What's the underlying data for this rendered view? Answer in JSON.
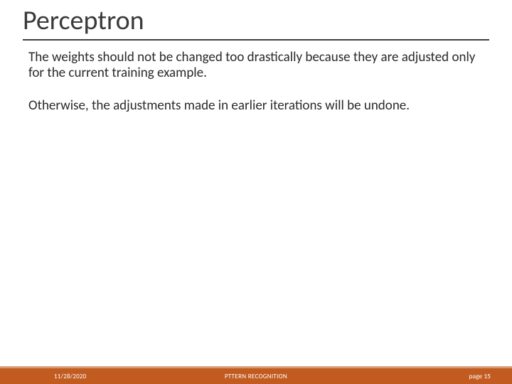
{
  "slide": {
    "title": "Perceptron",
    "title_color": "#3a3a3a",
    "title_fontsize": 38,
    "underline_color": "#404040",
    "paragraphs": [
      "The weights should not be changed too drastically because they are adjusted only for the current training example.",
      "Otherwise, the adjustments made in earlier iterations will be undone."
    ],
    "body_color": "#2a2a2a",
    "body_fontsize": 19,
    "background_color": "#ffffff"
  },
  "footer": {
    "date": "11/28/2020",
    "center": "PTTERN RECOGNITION",
    "page": "page 15",
    "bar_color": "#c25b20",
    "bar_top_color": "#d89a73",
    "text_color": "#ffffff",
    "fontsize": 9
  }
}
